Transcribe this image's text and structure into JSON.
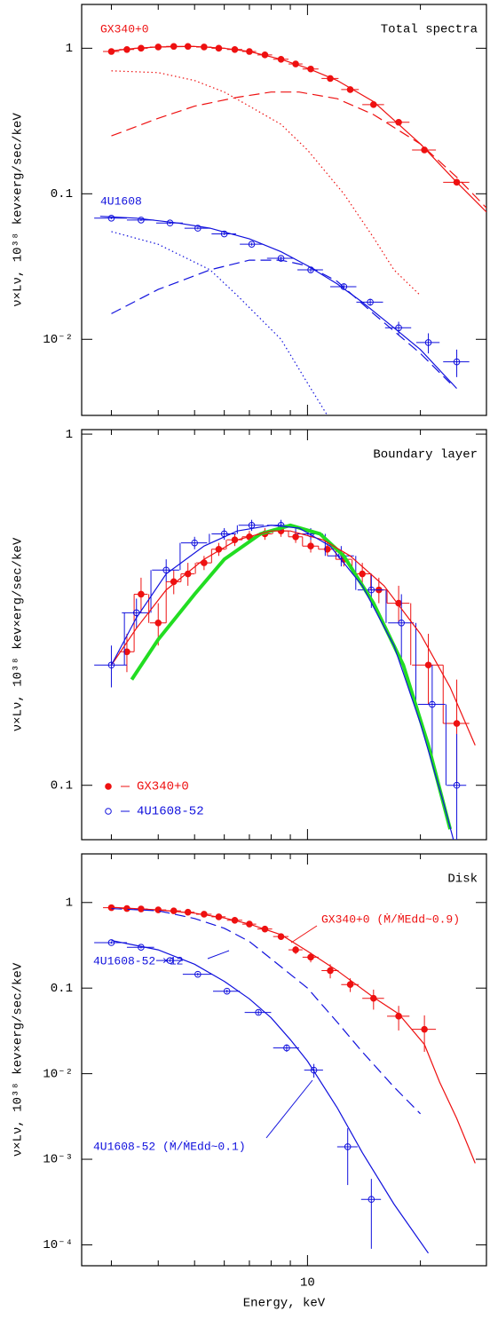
{
  "chart_data": [
    {
      "type": "line",
      "title": "Total spectra",
      "ylabel": "ν×Lν, 10³⁸ kev×erg/sec/keV",
      "xlog": true,
      "ylog": true,
      "xlim": [
        2.5,
        30
      ],
      "xticks": [
        10
      ],
      "xminor": [
        3,
        4,
        5,
        6,
        7,
        8,
        9,
        20,
        30
      ],
      "ylim": [
        0.003,
        2
      ],
      "yticks": [
        1,
        0.1,
        {
          "value": 0.01,
          "label": "10⁻²"
        }
      ],
      "annotations": [
        {
          "text": "GX340+0",
          "color": "#ee1111"
        },
        {
          "text": "4U1608",
          "color": "#1111dd"
        }
      ],
      "series": [
        {
          "style": "filled",
          "color": "#ee1111",
          "x": [
            3,
            3.3,
            3.6,
            4,
            4.4,
            4.8,
            5.3,
            5.8,
            6.4,
            7,
            7.7,
            8.5,
            9.3,
            10.2,
            11.5,
            13,
            15,
            17.5,
            20.5,
            25
          ],
          "values": [
            0.95,
            0.98,
            1.0,
            1.02,
            1.03,
            1.03,
            1.02,
            1.0,
            0.98,
            0.95,
            0.9,
            0.84,
            0.78,
            0.72,
            0.62,
            0.52,
            0.41,
            0.31,
            0.2,
            0.12
          ],
          "xerr": [
            0.15,
            0.15,
            0.15,
            0.2,
            0.2,
            0.2,
            0.25,
            0.25,
            0.3,
            0.3,
            0.35,
            0.4,
            0.4,
            0.5,
            0.6,
            0.7,
            1,
            1.2,
            1.5,
            2
          ]
        },
        {
          "style": "solid",
          "color": "#ee1111",
          "x": [
            3,
            3.5,
            4,
            5,
            6,
            7,
            8.5,
            10,
            12,
            15,
            20,
            25,
            30
          ],
          "values": [
            0.96,
            1.0,
            1.02,
            1.03,
            1.0,
            0.95,
            0.84,
            0.73,
            0.6,
            0.43,
            0.22,
            0.12,
            0.075
          ]
        },
        {
          "style": "dotted",
          "color": "#ee1111",
          "x": [
            3,
            4,
            5,
            6,
            7,
            8.5,
            10,
            12.5,
            15,
            17,
            20
          ],
          "values": [
            0.7,
            0.68,
            0.6,
            0.5,
            0.4,
            0.3,
            0.2,
            0.1,
            0.05,
            0.03,
            0.02
          ]
        },
        {
          "style": "dashed",
          "color": "#ee1111",
          "x": [
            3,
            4,
            5,
            6.5,
            8,
            9.5,
            12,
            15,
            20,
            25,
            30
          ],
          "values": [
            0.25,
            0.33,
            0.4,
            0.46,
            0.5,
            0.5,
            0.45,
            0.35,
            0.22,
            0.13,
            0.08
          ]
        },
        {
          "style": "open",
          "color": "#1111dd",
          "x": [
            3,
            3.6,
            4.3,
            5.1,
            6,
            7.1,
            8.5,
            10.2,
            12.5,
            14.7,
            17.5,
            21,
            25
          ],
          "values": [
            0.068,
            0.066,
            0.063,
            0.058,
            0.053,
            0.045,
            0.036,
            0.03,
            0.023,
            0.018,
            0.012,
            0.0095,
            0.007
          ],
          "xerr": [
            0.3,
            0.3,
            0.35,
            0.4,
            0.45,
            0.5,
            0.7,
            0.8,
            1,
            1.2,
            1.4,
            1.5,
            2
          ],
          "yerr": [
            0.001,
            0.001,
            0.001,
            0.001,
            0.001,
            0.001,
            0.001,
            0.001,
            0.001,
            0.001,
            0.0012,
            0.0015,
            0.0015
          ]
        },
        {
          "style": "solid",
          "color": "#1111dd",
          "x": [
            2.8,
            3.5,
            4.5,
            5.5,
            7,
            8.5,
            10,
            12,
            14,
            17,
            20,
            25
          ],
          "values": [
            0.07,
            0.068,
            0.063,
            0.058,
            0.049,
            0.04,
            0.032,
            0.024,
            0.018,
            0.012,
            0.0085,
            0.0046
          ]
        },
        {
          "style": "dotted",
          "color": "#1111dd",
          "x": [
            3,
            4,
            5.5,
            6.5,
            8.5,
            10,
            11.3
          ],
          "values": [
            0.055,
            0.045,
            0.03,
            0.02,
            0.01,
            0.005,
            0.003
          ]
        },
        {
          "style": "dashed",
          "color": "#1111dd",
          "x": [
            3,
            4,
            5.5,
            7,
            8.5,
            10,
            12,
            15,
            20,
            24
          ],
          "values": [
            0.015,
            0.022,
            0.03,
            0.035,
            0.035,
            0.032,
            0.025,
            0.015,
            0.008,
            0.005
          ]
        }
      ]
    },
    {
      "type": "line",
      "title": "Boundary layer",
      "ylabel": "ν×Lν, 10³⁸ kev×erg/sec/keV",
      "xlog": true,
      "ylog": true,
      "xlim": [
        2.5,
        30
      ],
      "xticks": [
        10
      ],
      "xminor": [
        3,
        4,
        5,
        6,
        7,
        8,
        9,
        20,
        30
      ],
      "ylim": [
        0.07,
        1.03
      ],
      "yticks": [
        1,
        0.1
      ],
      "legend": "lower left",
      "series": [
        {
          "name": "GX340+0",
          "style": "filled",
          "steps": true,
          "color": "#ee1111",
          "x": [
            3.3,
            3.6,
            4,
            4.4,
            4.8,
            5.3,
            5.8,
            6.4,
            7,
            7.7,
            8.5,
            9.3,
            10.2,
            11.3,
            12.5,
            14,
            15.5,
            17.5,
            21,
            25
          ],
          "values": [
            0.24,
            0.35,
            0.29,
            0.38,
            0.4,
            0.43,
            0.47,
            0.5,
            0.51,
            0.52,
            0.53,
            0.51,
            0.48,
            0.47,
            0.44,
            0.4,
            0.36,
            0.33,
            0.22,
            0.15
          ],
          "xerr": [
            0.15,
            0.15,
            0.2,
            0.2,
            0.2,
            0.25,
            0.25,
            0.3,
            0.3,
            0.35,
            0.4,
            0.4,
            0.5,
            0.6,
            0.6,
            0.8,
            0.8,
            1.2,
            2,
            2
          ],
          "yerr": [
            0.03,
            0.04,
            0.04,
            0.03,
            0.03,
            0.02,
            0.02,
            0.02,
            0.02,
            0.02,
            0.02,
            0.02,
            0.02,
            0.02,
            0.02,
            0.03,
            0.03,
            0.04,
            0.05,
            0.05
          ]
        },
        {
          "name": "4U1608-52",
          "style": "open",
          "steps": true,
          "color": "#1111dd",
          "x": [
            3,
            3.5,
            4.2,
            5,
            6,
            7.1,
            8.5,
            10.2,
            12.3,
            14.8,
            17.8,
            21.5,
            25
          ],
          "values": [
            0.22,
            0.31,
            0.41,
            0.49,
            0.52,
            0.55,
            0.55,
            0.52,
            0.45,
            0.36,
            0.29,
            0.17,
            0.1
          ],
          "xerr": [
            0.3,
            0.3,
            0.35,
            0.4,
            0.45,
            0.55,
            0.7,
            0.8,
            1,
            1.2,
            1.4,
            1.8,
            1.5
          ],
          "yerr": [
            0.03,
            0.03,
            0.03,
            0.02,
            0.02,
            0.02,
            0.02,
            0.02,
            0.03,
            0.04,
            0.06,
            0.05,
            0.04
          ]
        },
        {
          "style": "thick",
          "color": "#22dd22",
          "x": [
            3.4,
            4,
            5,
            6,
            7.5,
            9,
            10.8,
            12.5,
            15,
            18,
            21,
            24
          ],
          "values": [
            0.2,
            0.26,
            0.35,
            0.44,
            0.52,
            0.55,
            0.52,
            0.45,
            0.33,
            0.22,
            0.13,
            0.075
          ]
        },
        {
          "style": "solid",
          "color": "#ee1111",
          "x": [
            3,
            3.5,
            4.2,
            5.3,
            6.5,
            8,
            9,
            11,
            13,
            16,
            20,
            24,
            28
          ],
          "values": [
            0.22,
            0.28,
            0.36,
            0.44,
            0.5,
            0.53,
            0.53,
            0.5,
            0.45,
            0.37,
            0.27,
            0.19,
            0.13
          ]
        },
        {
          "style": "solid",
          "color": "#1111dd",
          "x": [
            3,
            3.5,
            4.2,
            5.3,
            6.5,
            8,
            9.5,
            11.5,
            14,
            17,
            20,
            23,
            24.5
          ],
          "values": [
            0.22,
            0.3,
            0.4,
            0.48,
            0.53,
            0.55,
            0.54,
            0.48,
            0.37,
            0.25,
            0.15,
            0.09,
            0.07
          ]
        }
      ]
    },
    {
      "type": "line",
      "title": "Disk",
      "ylabel": "ν×Lν, 10³⁸ kev×erg/sec/keV",
      "xlabel": "Energy, keV",
      "xlog": true,
      "ylog": true,
      "xlim": [
        2.5,
        30
      ],
      "xticks": [
        10
      ],
      "xminor": [
        3,
        4,
        5,
        6,
        7,
        8,
        9,
        20,
        30
      ],
      "show_xticklabels": true,
      "ylim": [
        5.7e-05,
        3.7
      ],
      "yticks": [
        1,
        0.1,
        {
          "value": 0.01,
          "label": "10⁻²"
        },
        {
          "value": 0.001,
          "label": "10⁻³"
        },
        {
          "value": 0.0001,
          "label": "10⁻⁴"
        }
      ],
      "annotations": [
        {
          "text": "GX340+0 (Ṁ/ṀEdd~0.9)",
          "color": "#ee1111"
        },
        {
          "text": "4U1608-52 ×12",
          "color": "#1111dd"
        },
        {
          "text": "4U1608-52 (Ṁ/ṀEdd~0.1)",
          "color": "#1111dd"
        }
      ],
      "series": [
        {
          "style": "filled",
          "color": "#ee1111",
          "x": [
            3,
            3.3,
            3.6,
            4,
            4.4,
            4.8,
            5.3,
            5.8,
            6.4,
            7,
            7.7,
            8.5,
            9.3,
            10.2,
            11.5,
            13,
            15,
            17.5,
            20.5
          ],
          "values": [
            0.87,
            0.85,
            0.84,
            0.82,
            0.8,
            0.77,
            0.73,
            0.68,
            0.62,
            0.56,
            0.49,
            0.4,
            0.28,
            0.23,
            0.16,
            0.11,
            0.076,
            0.047,
            0.033
          ],
          "xerr": [
            0.15,
            0.15,
            0.15,
            0.2,
            0.2,
            0.2,
            0.25,
            0.25,
            0.3,
            0.3,
            0.35,
            0.4,
            0.4,
            0.5,
            0.6,
            0.7,
            1,
            1.2,
            1.5
          ],
          "yerr": [
            0.03,
            0.03,
            0.03,
            0.03,
            0.03,
            0.03,
            0.03,
            0.03,
            0.03,
            0.03,
            0.03,
            0.03,
            0.03,
            0.03,
            0.03,
            0.02,
            0.02,
            0.015,
            0.015
          ]
        },
        {
          "style": "solid",
          "color": "#ee1111",
          "x": [
            3,
            4,
            5,
            6,
            7,
            8.5,
            10,
            12,
            15,
            17.5,
            20.5,
            22.5,
            25,
            28
          ],
          "values": [
            0.88,
            0.82,
            0.75,
            0.66,
            0.56,
            0.42,
            0.27,
            0.16,
            0.078,
            0.05,
            0.022,
            0.008,
            0.003,
            0.0009
          ]
        },
        {
          "style": "dashed",
          "color": "#1111dd",
          "x": [
            3,
            4,
            5,
            6,
            7,
            8,
            10,
            12,
            14,
            17,
            20
          ],
          "values": [
            0.85,
            0.8,
            0.65,
            0.5,
            0.35,
            0.22,
            0.1,
            0.04,
            0.018,
            0.007,
            0.0034
          ]
        },
        {
          "style": "open",
          "color": "#1111dd",
          "x": [
            3,
            3.6,
            4.3,
            5.1,
            6.1,
            7.4,
            8.8,
            10.4,
            12.8,
            14.8
          ],
          "values": [
            0.34,
            0.3,
            0.21,
            0.145,
            0.092,
            0.052,
            0.02,
            0.011,
            0.0014,
            0.00034
          ],
          "xerr": [
            0.3,
            0.3,
            0.35,
            0.45,
            0.5,
            0.6,
            0.7,
            0.6,
            0.8,
            0.9
          ],
          "yerr": [
            0.01,
            0.01,
            0.008,
            0.006,
            0.004,
            0.003,
            0.002,
            0.002,
            0.0009,
            0.00025
          ]
        },
        {
          "style": "solid",
          "color": "#1111dd",
          "x": [
            3,
            4,
            5,
            6,
            7,
            8,
            9,
            10,
            12,
            14,
            17,
            21
          ],
          "values": [
            0.36,
            0.28,
            0.19,
            0.12,
            0.075,
            0.045,
            0.025,
            0.014,
            0.004,
            0.0012,
            0.0003,
            8e-05
          ]
        }
      ]
    }
  ]
}
